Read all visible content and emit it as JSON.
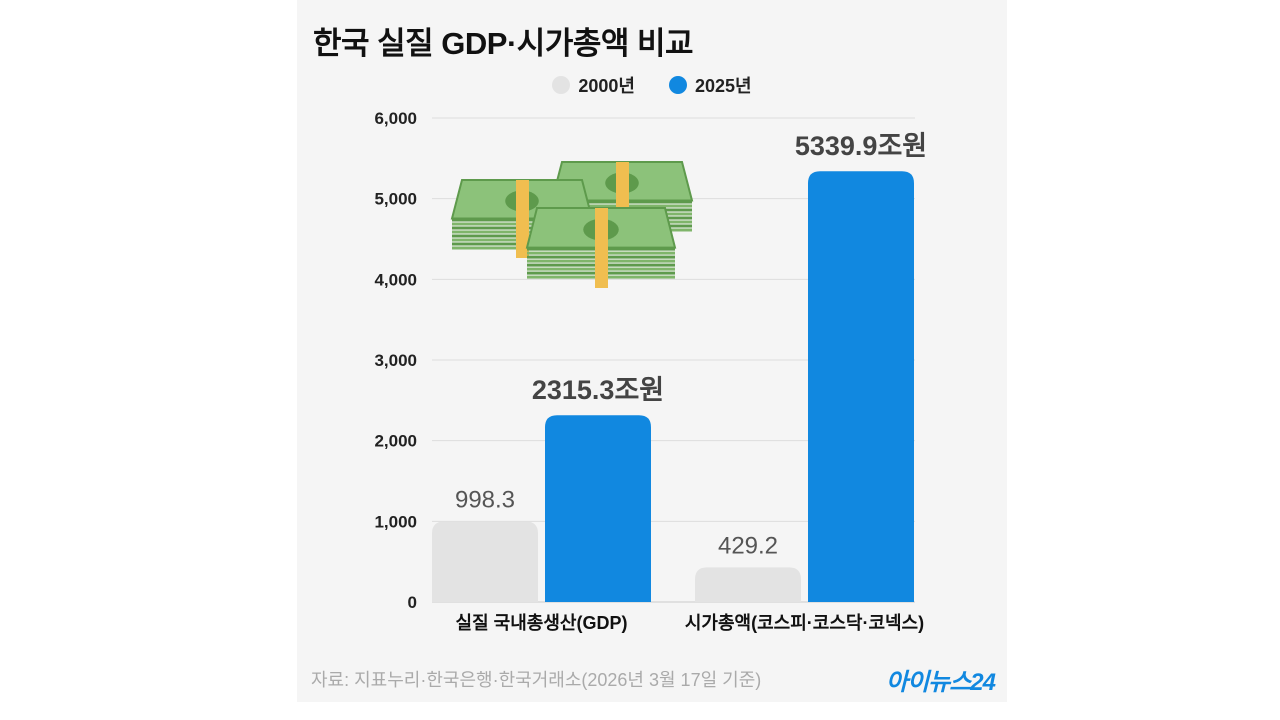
{
  "colors": {
    "series_2000": "#e3e3e3",
    "series_2025": "#1188e0",
    "grid": "#dddddd",
    "panel": "#f5f5f5"
  },
  "chart_data": {
    "type": "bar",
    "title": "한국 실질 GDP·시가총액 비교",
    "categories": [
      "실질 국내총생산(GDP)",
      "시가총액(코스피·코스닥·코넥스)"
    ],
    "series": [
      {
        "name": "2000년",
        "values": [
          998.3,
          429.2
        ],
        "labels": [
          "998.3",
          "429.2"
        ]
      },
      {
        "name": "2025년",
        "values": [
          2315.3,
          5339.9
        ],
        "labels": [
          "2315.3조원",
          "5339.9조원"
        ]
      }
    ],
    "ylim": [
      0,
      6000
    ],
    "yticks": [
      0,
      1000,
      2000,
      3000,
      4000,
      5000,
      6000
    ],
    "ytick_labels": [
      "0",
      "1,000",
      "2,000",
      "3,000",
      "4,000",
      "5,000",
      "6,000"
    ],
    "grid": true,
    "legend": "top-center"
  },
  "decoration": {
    "icon": "money-stacks-icon"
  },
  "footer": {
    "source": "자료: 지표누리·한국은행·한국거래소(2026년 3월 17일 기준)",
    "logo": "아이뉴스24"
  }
}
